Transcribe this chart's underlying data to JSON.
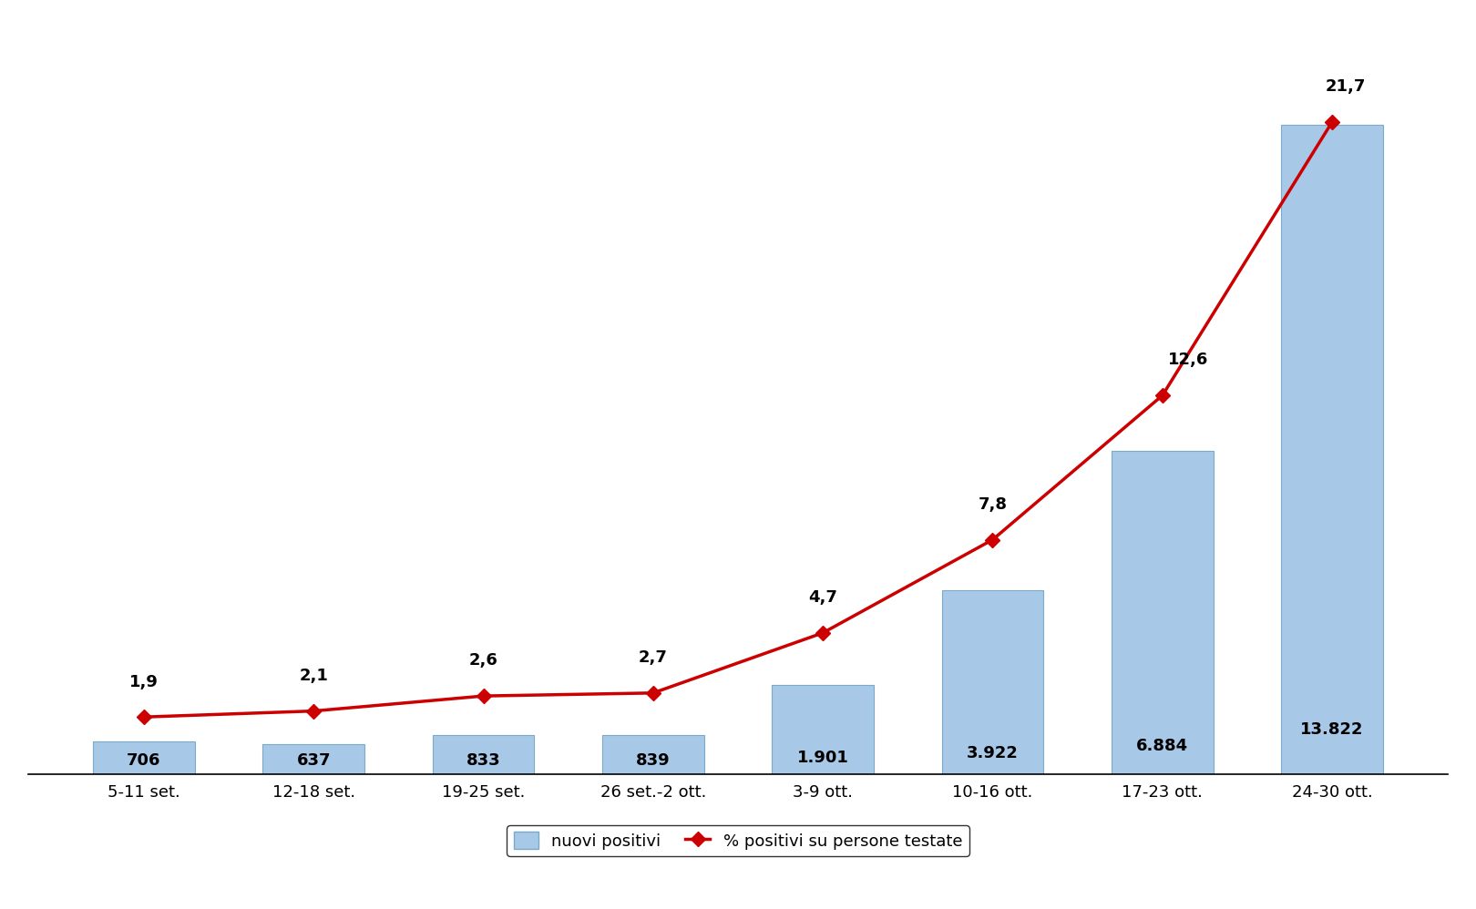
{
  "categories": [
    "5-11 set.",
    "12-18 set.",
    "19-25 set.",
    "26 set.-2 ott.",
    "3-9 ott.",
    "10-16 ott.",
    "17-23 ott.",
    "24-30 ott."
  ],
  "bar_values": [
    706,
    637,
    833,
    839,
    1901,
    3922,
    6884,
    13822
  ],
  "bar_labels": [
    "706",
    "637",
    "833",
    "839",
    "1.901",
    "3.922",
    "6.884",
    "13.822"
  ],
  "line_values": [
    1.9,
    2.1,
    2.6,
    2.7,
    4.7,
    7.8,
    12.6,
    21.7
  ],
  "line_labels": [
    "1,9",
    "2,1",
    "2,6",
    "2,7",
    "4,7",
    "7,8",
    "12,6",
    "21,7"
  ],
  "bar_color": "#a8c8e8",
  "line_color": "#cc0000",
  "bar_edge_color": "#7aaac8",
  "ylim_bar": [
    0,
    16000
  ],
  "ylim_line": [
    0,
    25
  ],
  "background_color": "#ffffff",
  "legend_bar_label": "nuovi positivi",
  "legend_line_label": "% positivi su persone testate",
  "bar_label_fontsize": 13,
  "line_label_fontsize": 13,
  "tick_fontsize": 13,
  "legend_fontsize": 13
}
